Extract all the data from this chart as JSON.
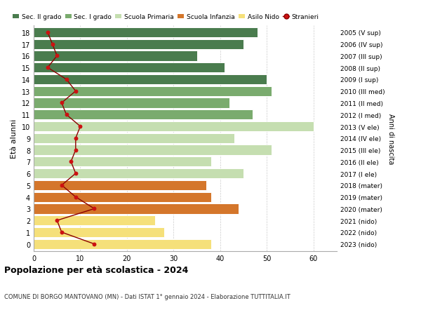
{
  "ages": [
    18,
    17,
    16,
    15,
    14,
    13,
    12,
    11,
    10,
    9,
    8,
    7,
    6,
    5,
    4,
    3,
    2,
    1,
    0
  ],
  "bar_values": [
    48,
    45,
    35,
    41,
    50,
    51,
    42,
    47,
    60,
    43,
    51,
    38,
    45,
    37,
    38,
    44,
    26,
    28,
    38
  ],
  "bar_colors": [
    "#4a7c4e",
    "#4a7c4e",
    "#4a7c4e",
    "#4a7c4e",
    "#4a7c4e",
    "#7aab6e",
    "#7aab6e",
    "#7aab6e",
    "#c5deb0",
    "#c5deb0",
    "#c5deb0",
    "#c5deb0",
    "#c5deb0",
    "#d4762b",
    "#d4762b",
    "#d4762b",
    "#f5e07a",
    "#f5e07a",
    "#f5e07a"
  ],
  "stranieri_values": [
    3,
    4,
    5,
    3,
    7,
    9,
    6,
    7,
    10,
    9,
    9,
    8,
    9,
    6,
    9,
    13,
    5,
    6,
    13
  ],
  "right_labels": [
    "2005 (V sup)",
    "2006 (IV sup)",
    "2007 (III sup)",
    "2008 (II sup)",
    "2009 (I sup)",
    "2010 (III med)",
    "2011 (II med)",
    "2012 (I med)",
    "2013 (V ele)",
    "2014 (IV ele)",
    "2015 (III ele)",
    "2016 (II ele)",
    "2017 (I ele)",
    "2018 (mater)",
    "2019 (mater)",
    "2020 (mater)",
    "2021 (nido)",
    "2022 (nido)",
    "2023 (nido)"
  ],
  "legend_labels": [
    "Sec. II grado",
    "Sec. I grado",
    "Scuola Primaria",
    "Scuola Infanzia",
    "Asilo Nido",
    "Stranieri"
  ],
  "legend_colors": [
    "#4a7c4e",
    "#7aab6e",
    "#c5deb0",
    "#d4762b",
    "#f5e07a",
    "#b22222"
  ],
  "ylabel": "Età alunni",
  "right_ylabel": "Anni di nascita",
  "title": "Popolazione per età scolastica - 2024",
  "subtitle": "COMUNE DI BORGO MANTOVANO (MN) - Dati ISTAT 1° gennaio 2024 - Elaborazione TUTTITALIA.IT",
  "xlim": [
    0,
    65
  ],
  "xticks": [
    0,
    10,
    20,
    30,
    40,
    50,
    60
  ],
  "background_color": "#ffffff",
  "grid_color": "#cccccc",
  "bar_edge_color": "#ffffff",
  "stranieri_line_color": "#8b0000",
  "stranieri_dot_color": "#cc1111"
}
